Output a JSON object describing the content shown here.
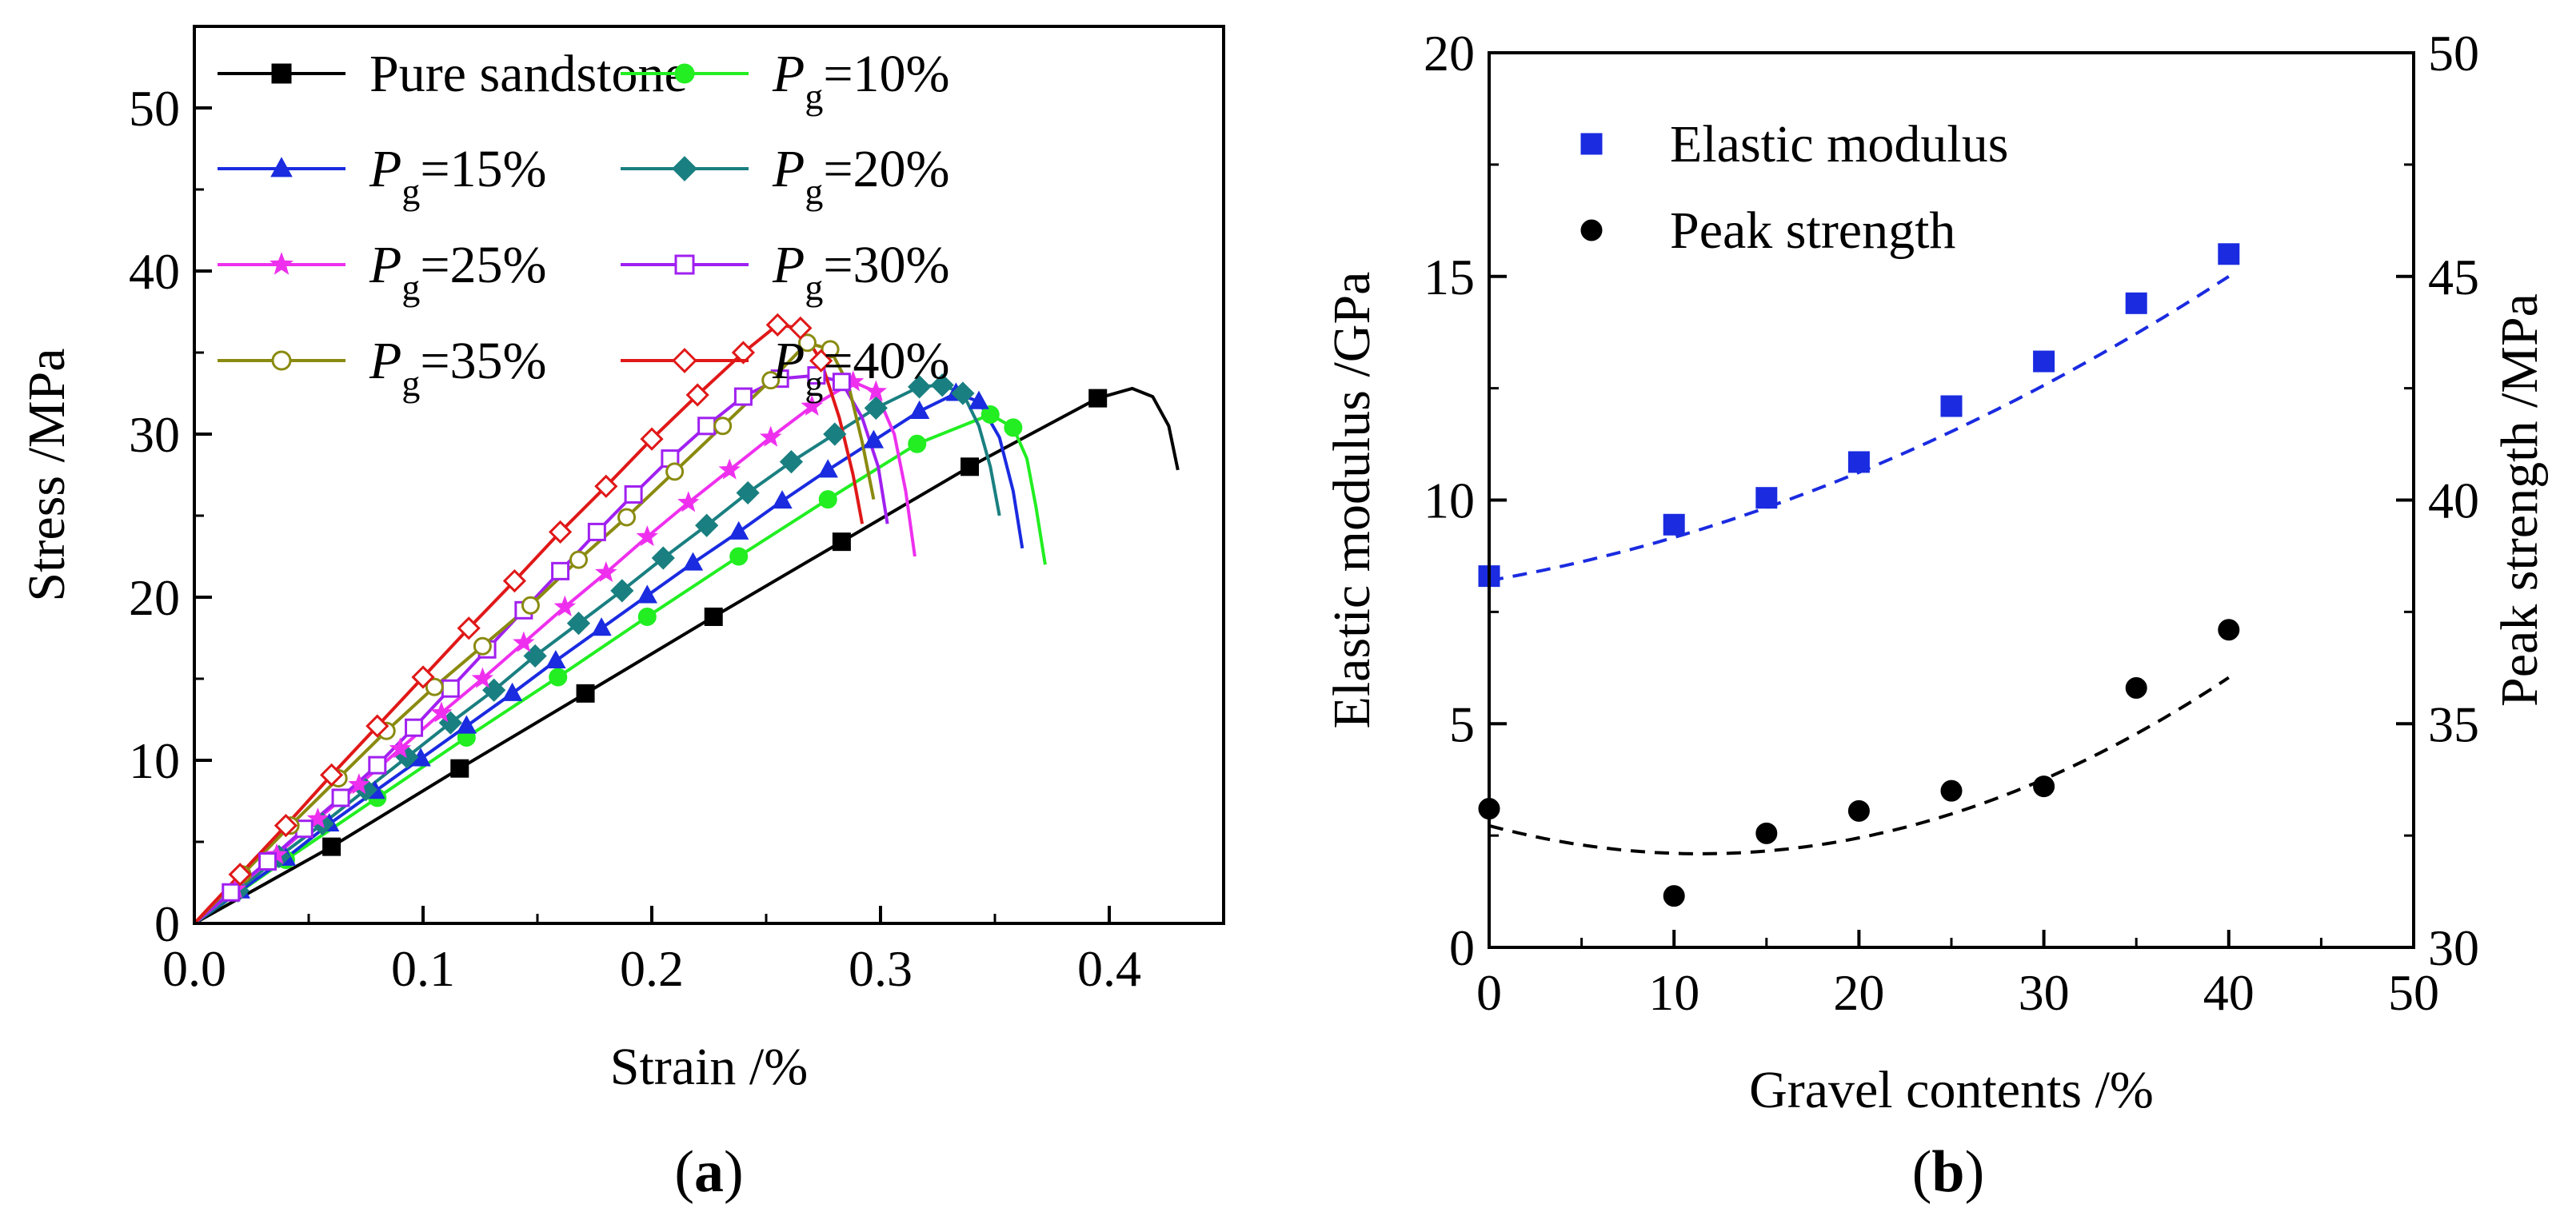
{
  "chart_data": [
    {
      "id": "a",
      "type": "line",
      "panel_label": "a",
      "xlabel": "Strain /%",
      "ylabel": "Stress /MPa",
      "xlim": [
        0,
        0.45
      ],
      "ylim": [
        0,
        55
      ],
      "xticks": [
        0.0,
        0.1,
        0.2,
        0.3,
        0.4
      ],
      "xtick_labels": [
        "0.0",
        "0.1",
        "0.2",
        "0.3",
        "0.4"
      ],
      "yticks": [
        0,
        10,
        20,
        30,
        40,
        50
      ],
      "ytick_labels": [
        "0",
        "10",
        "20",
        "30",
        "40",
        "50"
      ],
      "legend": {
        "position": "top-left",
        "columns": 2
      },
      "series": [
        {
          "name": "Pure sandstone",
          "symbol": "",
          "sub": "",
          "suffix": "",
          "color": "#000000",
          "marker": "square",
          "x": [
            0.0,
            0.06,
            0.116,
            0.171,
            0.227,
            0.283,
            0.339,
            0.395,
            0.41,
            0.419,
            0.426,
            0.43
          ],
          "y": [
            0.0,
            4.7,
            9.5,
            14.1,
            18.8,
            23.4,
            28.0,
            32.2,
            32.8,
            32.3,
            30.5,
            27.8
          ]
        },
        {
          "name": "P_g=10%",
          "symbol": "P",
          "sub": "g",
          "suffix": "=10%",
          "color": "#22ee22",
          "marker": "circle",
          "x": [
            0.0,
            0.04,
            0.08,
            0.119,
            0.159,
            0.198,
            0.238,
            0.277,
            0.316,
            0.348,
            0.358,
            0.364,
            0.368,
            0.372
          ],
          "y": [
            0.0,
            3.9,
            7.7,
            11.4,
            15.1,
            18.8,
            22.5,
            26.0,
            29.4,
            31.2,
            30.4,
            28.5,
            25.5,
            22.0
          ]
        },
        {
          "name": "P_g=15%",
          "symbol": "P",
          "sub": "g",
          "suffix": "=15%",
          "color": "#1a2be0",
          "marker": "triangle",
          "x": [
            0.0,
            0.02,
            0.04,
            0.059,
            0.079,
            0.099,
            0.119,
            0.139,
            0.158,
            0.178,
            0.198,
            0.218,
            0.238,
            0.257,
            0.277,
            0.297,
            0.317,
            0.333,
            0.343,
            0.352,
            0.358,
            0.362
          ],
          "y": [
            0.0,
            2.0,
            4.0,
            6.1,
            8.1,
            10.1,
            12.1,
            14.1,
            16.1,
            18.1,
            20.1,
            22.1,
            24.0,
            25.9,
            27.8,
            29.6,
            31.4,
            32.5,
            32.0,
            29.8,
            26.5,
            23.0
          ]
        },
        {
          "name": "P_g=20%",
          "symbol": "P",
          "sub": "g",
          "suffix": "=20%",
          "color": "#1a7f80",
          "marker": "diamond",
          "x": [
            0.0,
            0.019,
            0.037,
            0.056,
            0.075,
            0.093,
            0.112,
            0.131,
            0.149,
            0.168,
            0.187,
            0.205,
            0.224,
            0.242,
            0.261,
            0.28,
            0.298,
            0.317,
            0.327,
            0.336,
            0.343,
            0.348,
            0.352
          ],
          "y": [
            0.0,
            2.0,
            4.1,
            6.1,
            8.2,
            10.2,
            12.3,
            14.3,
            16.4,
            18.4,
            20.4,
            22.4,
            24.4,
            26.4,
            28.3,
            30.0,
            31.6,
            32.9,
            33.0,
            32.5,
            30.5,
            28.0,
            25.0
          ]
        },
        {
          "name": "P_g=25%",
          "symbol": "P",
          "sub": "g",
          "suffix": "=25%",
          "color": "#ee30ee",
          "marker": "star",
          "x": [
            0.0,
            0.018,
            0.036,
            0.054,
            0.072,
            0.09,
            0.108,
            0.126,
            0.144,
            0.162,
            0.18,
            0.198,
            0.216,
            0.234,
            0.252,
            0.27,
            0.288,
            0.298,
            0.306,
            0.311,
            0.315
          ],
          "y": [
            0.0,
            2.1,
            4.2,
            6.4,
            8.5,
            10.7,
            12.9,
            15.0,
            17.2,
            19.4,
            21.5,
            23.7,
            25.8,
            27.8,
            29.8,
            31.7,
            33.2,
            32.6,
            30.0,
            26.5,
            22.5
          ]
        },
        {
          "name": "P_g=30%",
          "symbol": "P",
          "sub": "g",
          "suffix": "=30%",
          "color": "#a020f0",
          "marker": "opensquare",
          "x": [
            0.0,
            0.016,
            0.032,
            0.048,
            0.064,
            0.08,
            0.096,
            0.112,
            0.128,
            0.144,
            0.16,
            0.176,
            0.192,
            0.208,
            0.224,
            0.24,
            0.256,
            0.272,
            0.283,
            0.292,
            0.299,
            0.303
          ],
          "y": [
            0.0,
            1.9,
            3.8,
            5.8,
            7.7,
            9.7,
            12.0,
            14.4,
            16.8,
            19.2,
            21.6,
            24.0,
            26.3,
            28.5,
            30.5,
            32.3,
            33.4,
            33.6,
            33.2,
            31.0,
            28.0,
            24.5
          ]
        },
        {
          "name": "P_g=35%",
          "symbol": "P",
          "sub": "g",
          "suffix": "=35%",
          "color": "#8a8a10",
          "marker": "opencircle",
          "x": [
            0.0,
            0.021,
            0.042,
            0.063,
            0.084,
            0.105,
            0.126,
            0.147,
            0.168,
            0.189,
            0.21,
            0.231,
            0.252,
            0.268,
            0.278,
            0.286,
            0.292,
            0.297
          ],
          "y": [
            0.0,
            3.0,
            6.0,
            8.9,
            11.8,
            14.5,
            17.0,
            19.5,
            22.3,
            24.9,
            27.7,
            30.5,
            33.3,
            35.6,
            35.2,
            33.0,
            29.5,
            26.0
          ]
        },
        {
          "name": "P_g=40%",
          "symbol": "P",
          "sub": "g",
          "suffix": "=40%",
          "color": "#e01818",
          "marker": "opendiamond",
          "x": [
            0.0,
            0.02,
            0.04,
            0.06,
            0.08,
            0.1,
            0.12,
            0.14,
            0.16,
            0.18,
            0.2,
            0.22,
            0.24,
            0.255,
            0.265,
            0.274,
            0.282,
            0.288,
            0.292
          ],
          "y": [
            0.0,
            3.0,
            6.0,
            9.1,
            12.1,
            15.1,
            18.1,
            21.0,
            24.0,
            26.8,
            29.7,
            32.4,
            35.0,
            36.7,
            36.5,
            34.5,
            31.0,
            27.5,
            24.5
          ]
        }
      ]
    },
    {
      "id": "b",
      "type": "scatter",
      "panel_label": "b",
      "xlabel": "Gravel contents /%",
      "ylabel_left": "Elastic modulus /GPa",
      "ylabel_right": "Peak strength /MPa",
      "xlim": [
        0,
        50
      ],
      "ylim_left": [
        0,
        20
      ],
      "ylim_right": [
        30,
        50
      ],
      "xticks": [
        0,
        10,
        20,
        30,
        40,
        50
      ],
      "xtick_labels": [
        "0",
        "10",
        "20",
        "30",
        "40",
        "50"
      ],
      "yticks_left": [
        0,
        5,
        10,
        15,
        20
      ],
      "ytick_labels_left": [
        "0",
        "5",
        "10",
        "15",
        "20"
      ],
      "yticks_right": [
        30,
        35,
        40,
        45,
        50
      ],
      "ytick_labels_right": [
        "30",
        "35",
        "40",
        "45",
        "50"
      ],
      "legend": {
        "position": "top-left"
      },
      "series": [
        {
          "name": "Elastic modulus",
          "axis": "left",
          "color": "#1a2be0",
          "marker": "square",
          "x": [
            0,
            10,
            15,
            20,
            25,
            30,
            35,
            40
          ],
          "y": [
            8.3,
            9.45,
            10.05,
            10.85,
            12.1,
            13.1,
            14.4,
            15.5
          ],
          "fit": [
            8.2,
            0.072,
            0.00245
          ]
        },
        {
          "name": "Peak strength",
          "axis": "right",
          "color": "#000000",
          "marker": "circle",
          "x": [
            0,
            10,
            15,
            20,
            25,
            30,
            35,
            40
          ],
          "y": [
            33.1,
            31.15,
            32.55,
            33.05,
            33.5,
            33.6,
            35.8,
            37.1
          ],
          "fit": [
            32.72,
            -0.11,
            0.00482
          ]
        }
      ]
    }
  ]
}
